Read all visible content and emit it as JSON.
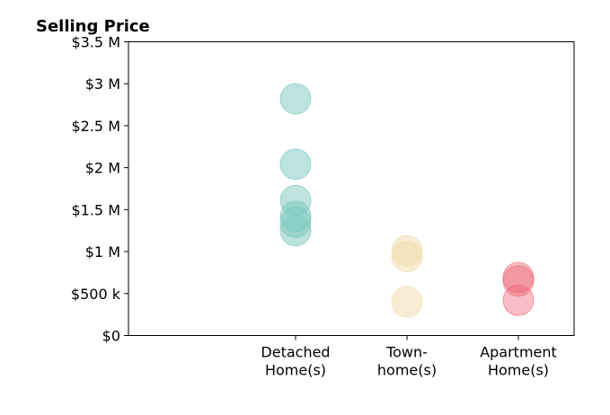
{
  "chart_data": {
    "type": "scatter",
    "title": "Selling Price",
    "xlabel": "",
    "ylabel": "",
    "ylim": [
      0,
      3500000
    ],
    "yticks": [
      0,
      500000,
      1000000,
      1500000,
      2000000,
      2500000,
      3000000,
      3500000
    ],
    "ytick_labels": [
      "$0",
      "$500 k",
      "$1 M",
      "$1.5 M",
      "$2 M",
      "$2.5 M",
      "$3 M",
      "$3.5 M"
    ],
    "categories": [
      {
        "lines": [
          "Detached",
          "Home(s)"
        ]
      },
      {
        "lines": [
          "Town-",
          "home(s)"
        ]
      },
      {
        "lines": [
          "Apartment",
          "Home(s)"
        ]
      }
    ],
    "xlim": [
      -0.5,
      3.5
    ],
    "grid": false,
    "series": [
      {
        "color": "#79c7bd",
        "opacity": 0.5,
        "category_index": 0,
        "values": [
          2820000,
          2040000,
          1610000,
          1420000,
          1350000,
          1250000
        ]
      },
      {
        "color": "#f0dba9",
        "opacity": 0.5,
        "category_index": 1,
        "values": [
          1010000,
          940000,
          400000
        ]
      },
      {
        "color": "#ec5f6d",
        "opacity": 0.4,
        "category_index": 2,
        "values": [
          690000,
          650000,
          420000
        ]
      }
    ]
  }
}
